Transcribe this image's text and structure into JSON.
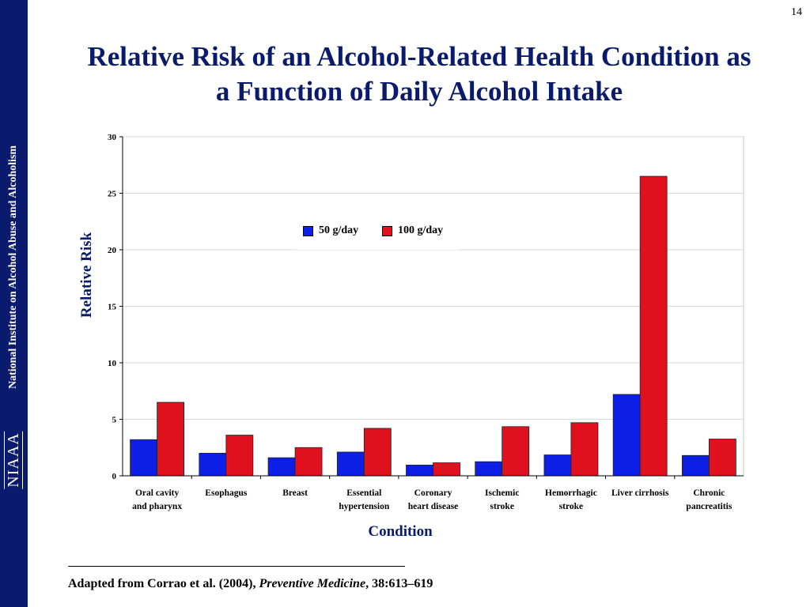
{
  "page_number": "14",
  "sidebar": {
    "org_name": "National Institute on Alcohol Abuse and Alcoholism",
    "logo_text": "NIAAA"
  },
  "title": "Relative Risk of an Alcohol-Related Health Condition as a Function of Daily Alcohol Intake",
  "footnote": {
    "prefix": "Adapted from Corrao et al. (2004), ",
    "journal": "Preventive Medicine",
    "suffix": ", 38:613‒619"
  },
  "colors": {
    "sidebar": "#0a1b6e",
    "title": "#0a1b6e",
    "series_50": "#0d1ee6",
    "series_100": "#e0101e",
    "grid": "#d9d9d9"
  },
  "chart_data": {
    "type": "bar",
    "title": "",
    "xlabel": "Condition",
    "ylabel": "Relative Risk",
    "ylim": [
      0,
      30
    ],
    "yticks": [
      0,
      5,
      10,
      15,
      20,
      25,
      30
    ],
    "grid": true,
    "legend_position": "top-center",
    "categories": [
      [
        "Oral cavity",
        "and pharynx"
      ],
      [
        "Esophagus"
      ],
      [
        "Breast"
      ],
      [
        "Essential",
        "hypertension"
      ],
      [
        "Coronary",
        "heart disease"
      ],
      [
        "Ischemic",
        "stroke"
      ],
      [
        "Hemorrhagic",
        "stroke"
      ],
      [
        "Liver cirrhosis"
      ],
      [
        "Chronic",
        "pancreatitis"
      ]
    ],
    "series": [
      {
        "name": "50 g/day",
        "color": "#0d1ee6",
        "values": [
          3.2,
          2.0,
          1.6,
          2.1,
          0.95,
          1.25,
          1.85,
          7.2,
          1.8
        ]
      },
      {
        "name": "100 g/day",
        "color": "#e0101e",
        "values": [
          6.5,
          3.6,
          2.5,
          4.2,
          1.15,
          4.35,
          4.7,
          26.5,
          3.25
        ]
      }
    ]
  }
}
